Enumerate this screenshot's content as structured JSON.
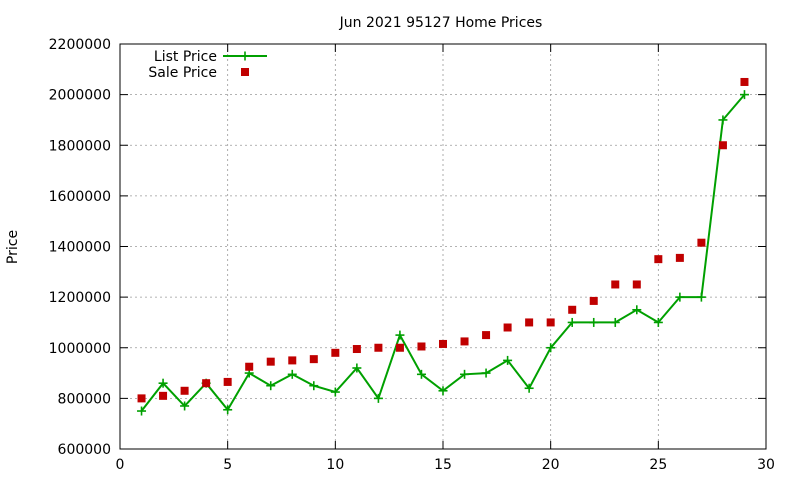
{
  "chart_data": {
    "type": "line",
    "title": "Jun 2021 95127 Home Prices",
    "xlabel": "",
    "ylabel": "Price",
    "xlim": [
      0,
      30
    ],
    "ylim": [
      600000,
      2200000
    ],
    "x_ticks": [
      0,
      5,
      10,
      15,
      20,
      25,
      30
    ],
    "y_ticks": [
      600000,
      800000,
      1000000,
      1200000,
      1400000,
      1600000,
      1800000,
      2000000,
      2200000
    ],
    "grid": true,
    "legend_position": "top-left",
    "series": [
      {
        "name": "List Price",
        "style": "line-with-plus-markers",
        "color": "#00a000",
        "x": [
          1,
          2,
          3,
          4,
          5,
          6,
          7,
          8,
          9,
          10,
          11,
          12,
          13,
          14,
          15,
          16,
          17,
          18,
          19,
          20,
          21,
          22,
          23,
          24,
          25,
          26,
          27,
          28,
          29
        ],
        "values": [
          750000,
          860000,
          770000,
          860000,
          755000,
          900000,
          850000,
          895000,
          850000,
          825000,
          920000,
          800000,
          1050000,
          895000,
          830000,
          895000,
          900000,
          950000,
          840000,
          1000000,
          1100000,
          1100000,
          1100000,
          1150000,
          1100000,
          1200000,
          1200000,
          1900000,
          2000000
        ]
      },
      {
        "name": "Sale Price",
        "style": "square-markers",
        "color": "#c00000",
        "x": [
          1,
          2,
          3,
          4,
          5,
          6,
          7,
          8,
          9,
          10,
          11,
          12,
          13,
          14,
          15,
          16,
          17,
          18,
          19,
          20,
          21,
          22,
          23,
          24,
          25,
          26,
          27,
          28,
          29
        ],
        "values": [
          800000,
          810000,
          830000,
          860000,
          865000,
          925000,
          945000,
          950000,
          955000,
          980000,
          995000,
          1000000,
          1000000,
          1005000,
          1015000,
          1025000,
          1050000,
          1080000,
          1100000,
          1100000,
          1150000,
          1185000,
          1250000,
          1250000,
          1350000,
          1355000,
          1415000,
          1800000,
          2050000
        ]
      }
    ]
  }
}
